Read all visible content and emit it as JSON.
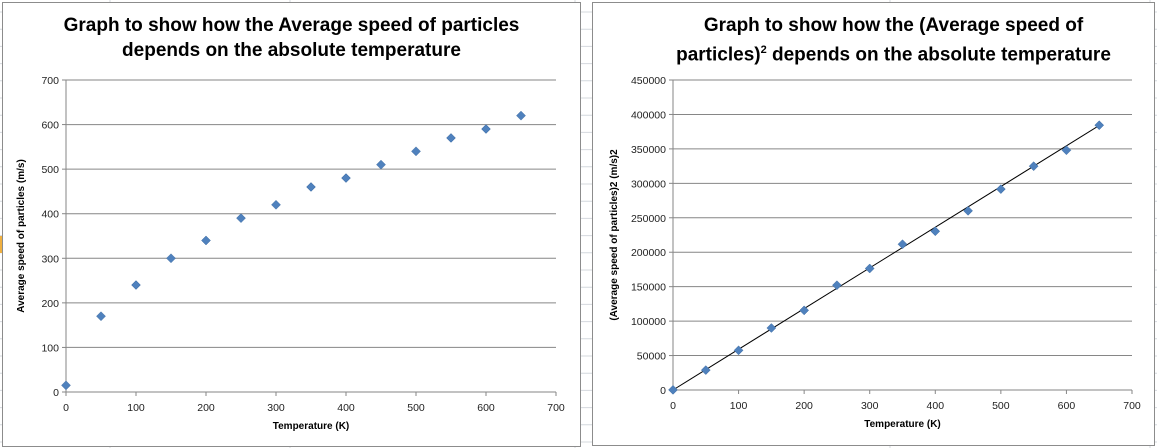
{
  "spreadsheet": {
    "gridline_color": "#d4d8de",
    "marker_color": "#f0b040"
  },
  "chart_data": [
    {
      "type": "scatter",
      "title": "Graph to show how the Average speed of particles depends on the absolute temperature",
      "title_lines": [
        "Graph to show how the Average speed of particles",
        "depends on the absolute temperature"
      ],
      "xlabel": "Temperature  (K)",
      "ylabel": "Average speed of particles (m/s)",
      "xlim": [
        0,
        700
      ],
      "ylim": [
        0,
        700
      ],
      "x_ticks": [
        0,
        100,
        200,
        300,
        400,
        500,
        600,
        700
      ],
      "y_ticks": [
        0,
        100,
        200,
        300,
        400,
        500,
        600,
        700
      ],
      "grid": "horizontal",
      "legend": "none",
      "marker": "diamond",
      "marker_color": "#4f81bd",
      "trendline": false,
      "x": [
        0,
        50,
        100,
        150,
        200,
        250,
        300,
        350,
        400,
        450,
        500,
        550,
        600,
        650
      ],
      "y": [
        15,
        170,
        240,
        300,
        340,
        390,
        420,
        460,
        480,
        510,
        540,
        570,
        590,
        620
      ]
    },
    {
      "type": "scatter",
      "title": "Graph to show how the (Average speed of particles)2 depends on the absolute temperature",
      "title_lines": [
        "Graph to show how the (Average speed of",
        "particles)",
        "2",
        " depends on the absolute temperature"
      ],
      "xlabel": "Temperature  (K)",
      "ylabel": "(Average speed of particles)2 (m/s)2",
      "xlim": [
        0,
        700
      ],
      "ylim": [
        0,
        450000
      ],
      "x_ticks": [
        0,
        100,
        200,
        300,
        400,
        500,
        600,
        700
      ],
      "y_ticks": [
        0,
        50000,
        100000,
        150000,
        200000,
        250000,
        300000,
        350000,
        400000,
        450000
      ],
      "grid": "horizontal",
      "legend": "none",
      "marker": "diamond",
      "marker_color": "#4f81bd",
      "trendline": true,
      "trendline_color": "#000000",
      "trendline_points": [
        [
          0,
          0
        ],
        [
          650,
          384000
        ]
      ],
      "x": [
        0,
        50,
        100,
        150,
        200,
        250,
        300,
        350,
        400,
        450,
        500,
        550,
        600,
        650
      ],
      "y": [
        225,
        28900,
        57600,
        90000,
        115600,
        152100,
        176400,
        211600,
        230400,
        260100,
        291600,
        324900,
        348100,
        384400
      ]
    }
  ]
}
